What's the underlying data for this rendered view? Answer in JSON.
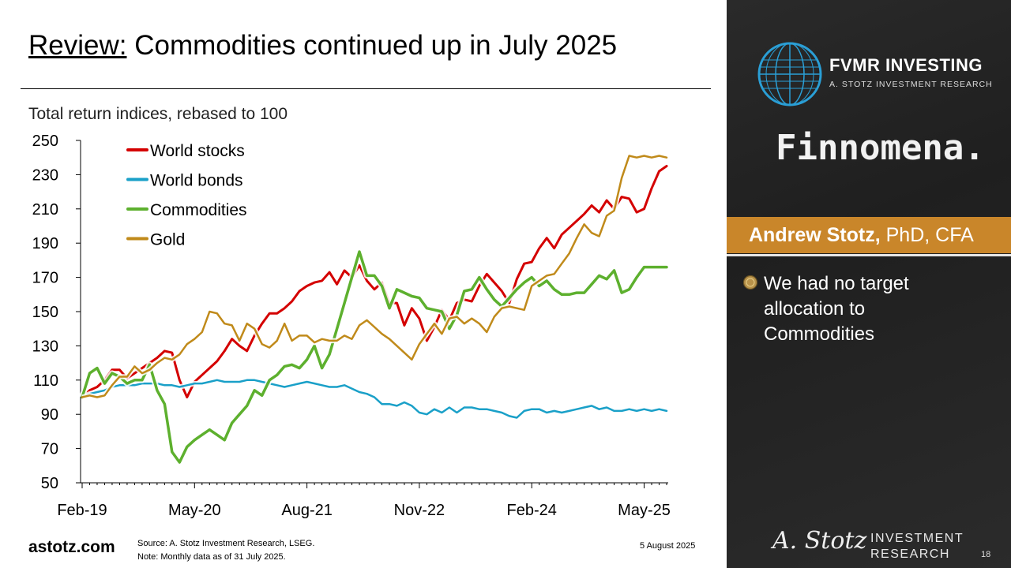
{
  "slide": {
    "title_underlined": "Review:",
    "title_rest": " Commodities continued up in July 2025",
    "site": "astotz.com",
    "source_line1": "Source: A. Stotz Investment Research, LSEG.",
    "source_line2": "Note: Monthly data as of 31 July 2025.",
    "date": "5 August 2025",
    "page_number": "18"
  },
  "sidebar": {
    "brand_name": "FVMR INVESTING",
    "brand_sub": "A. STOTZ INVESTMENT RESEARCH",
    "partner": "Finnomena.",
    "presenter_name": "Andrew Stotz,",
    "presenter_credentials": " PhD, CFA",
    "bullet_text": "We had no target allocation to Commodities",
    "signature": "A. Stotz",
    "footer_brand_line1": "INVESTMENT",
    "footer_brand_line2": "RESEARCH",
    "accent_color": "#c9862a"
  },
  "chart_data": {
    "type": "line",
    "title": "Total return indices, rebased to 100",
    "ylim": [
      50,
      250
    ],
    "yticks": [
      50,
      70,
      90,
      110,
      130,
      150,
      170,
      190,
      210,
      230,
      250
    ],
    "xlim": [
      0,
      78
    ],
    "xticks": [
      {
        "i": 0,
        "label": "Feb-19"
      },
      {
        "i": 15,
        "label": "May-20"
      },
      {
        "i": 30,
        "label": "Aug-21"
      },
      {
        "i": 45,
        "label": "Nov-22"
      },
      {
        "i": 60,
        "label": "Feb-24"
      },
      {
        "i": 75,
        "label": "May-25"
      }
    ],
    "legend_position": "top-left",
    "series": [
      {
        "name": "World stocks",
        "color": "#d40000",
        "values": [
          100,
          104,
          106,
          110,
          116,
          116,
          111,
          114,
          117,
          120,
          123,
          127,
          126,
          110,
          100,
          109,
          113,
          117,
          121,
          127,
          134,
          130,
          127,
          136,
          143,
          149,
          149,
          152,
          156,
          162,
          165,
          167,
          168,
          173,
          166,
          174,
          170,
          177,
          168,
          163,
          167,
          155,
          155,
          142,
          152,
          146,
          133,
          141,
          151,
          145,
          155,
          157,
          156,
          165,
          172,
          167,
          162,
          155,
          169,
          178,
          179,
          187,
          193,
          187,
          195,
          199,
          203,
          207,
          212,
          208,
          215,
          210,
          217,
          216,
          208,
          210,
          222,
          232,
          235
        ]
      },
      {
        "name": "World bonds",
        "color": "#1aa0c8",
        "values": [
          100,
          102,
          103,
          104,
          106,
          107,
          107,
          107,
          108,
          108,
          108,
          107,
          107,
          106,
          107,
          108,
          108,
          109,
          110,
          109,
          109,
          109,
          110,
          110,
          109,
          108,
          107,
          106,
          107,
          108,
          109,
          108,
          107,
          106,
          106,
          107,
          105,
          103,
          102,
          100,
          96,
          96,
          95,
          97,
          95,
          91,
          90,
          93,
          91,
          94,
          91,
          94,
          94,
          93,
          93,
          92,
          91,
          89,
          88,
          92,
          93,
          93,
          91,
          92,
          91,
          92,
          93,
          94,
          95,
          93,
          94,
          92,
          92,
          93,
          92,
          93,
          92,
          93,
          92
        ]
      },
      {
        "name": "Commodities",
        "color": "#5db02e",
        "values": [
          100,
          114,
          117,
          108,
          114,
          112,
          108,
          110,
          110,
          119,
          104,
          96,
          68,
          62,
          71,
          75,
          78,
          81,
          78,
          75,
          85,
          90,
          95,
          104,
          101,
          110,
          113,
          118,
          119,
          117,
          122,
          130,
          117,
          125,
          140,
          155,
          170,
          185,
          171,
          171,
          165,
          152,
          163,
          161,
          159,
          158,
          152,
          151,
          150,
          140,
          148,
          162,
          163,
          170,
          163,
          157,
          153,
          158,
          163,
          167,
          170,
          165,
          168,
          163,
          160,
          160,
          161,
          161,
          166,
          171,
          169,
          174,
          161,
          163,
          170,
          176,
          176,
          176,
          176
        ]
      },
      {
        "name": "Gold",
        "color": "#c08a1a",
        "values": [
          100,
          101,
          100,
          101,
          107,
          112,
          112,
          118,
          114,
          116,
          120,
          123,
          122,
          125,
          131,
          134,
          138,
          150,
          149,
          143,
          142,
          133,
          143,
          140,
          131,
          129,
          133,
          143,
          133,
          136,
          136,
          132,
          134,
          133,
          133,
          136,
          134,
          142,
          145,
          141,
          137,
          134,
          130,
          126,
          122,
          131,
          137,
          143,
          137,
          146,
          147,
          143,
          146,
          143,
          138,
          147,
          152,
          153,
          152,
          151,
          165,
          168,
          171,
          172,
          178,
          184,
          193,
          201,
          196,
          194,
          206,
          209,
          228,
          241,
          240,
          241,
          240,
          241,
          240
        ]
      }
    ]
  }
}
